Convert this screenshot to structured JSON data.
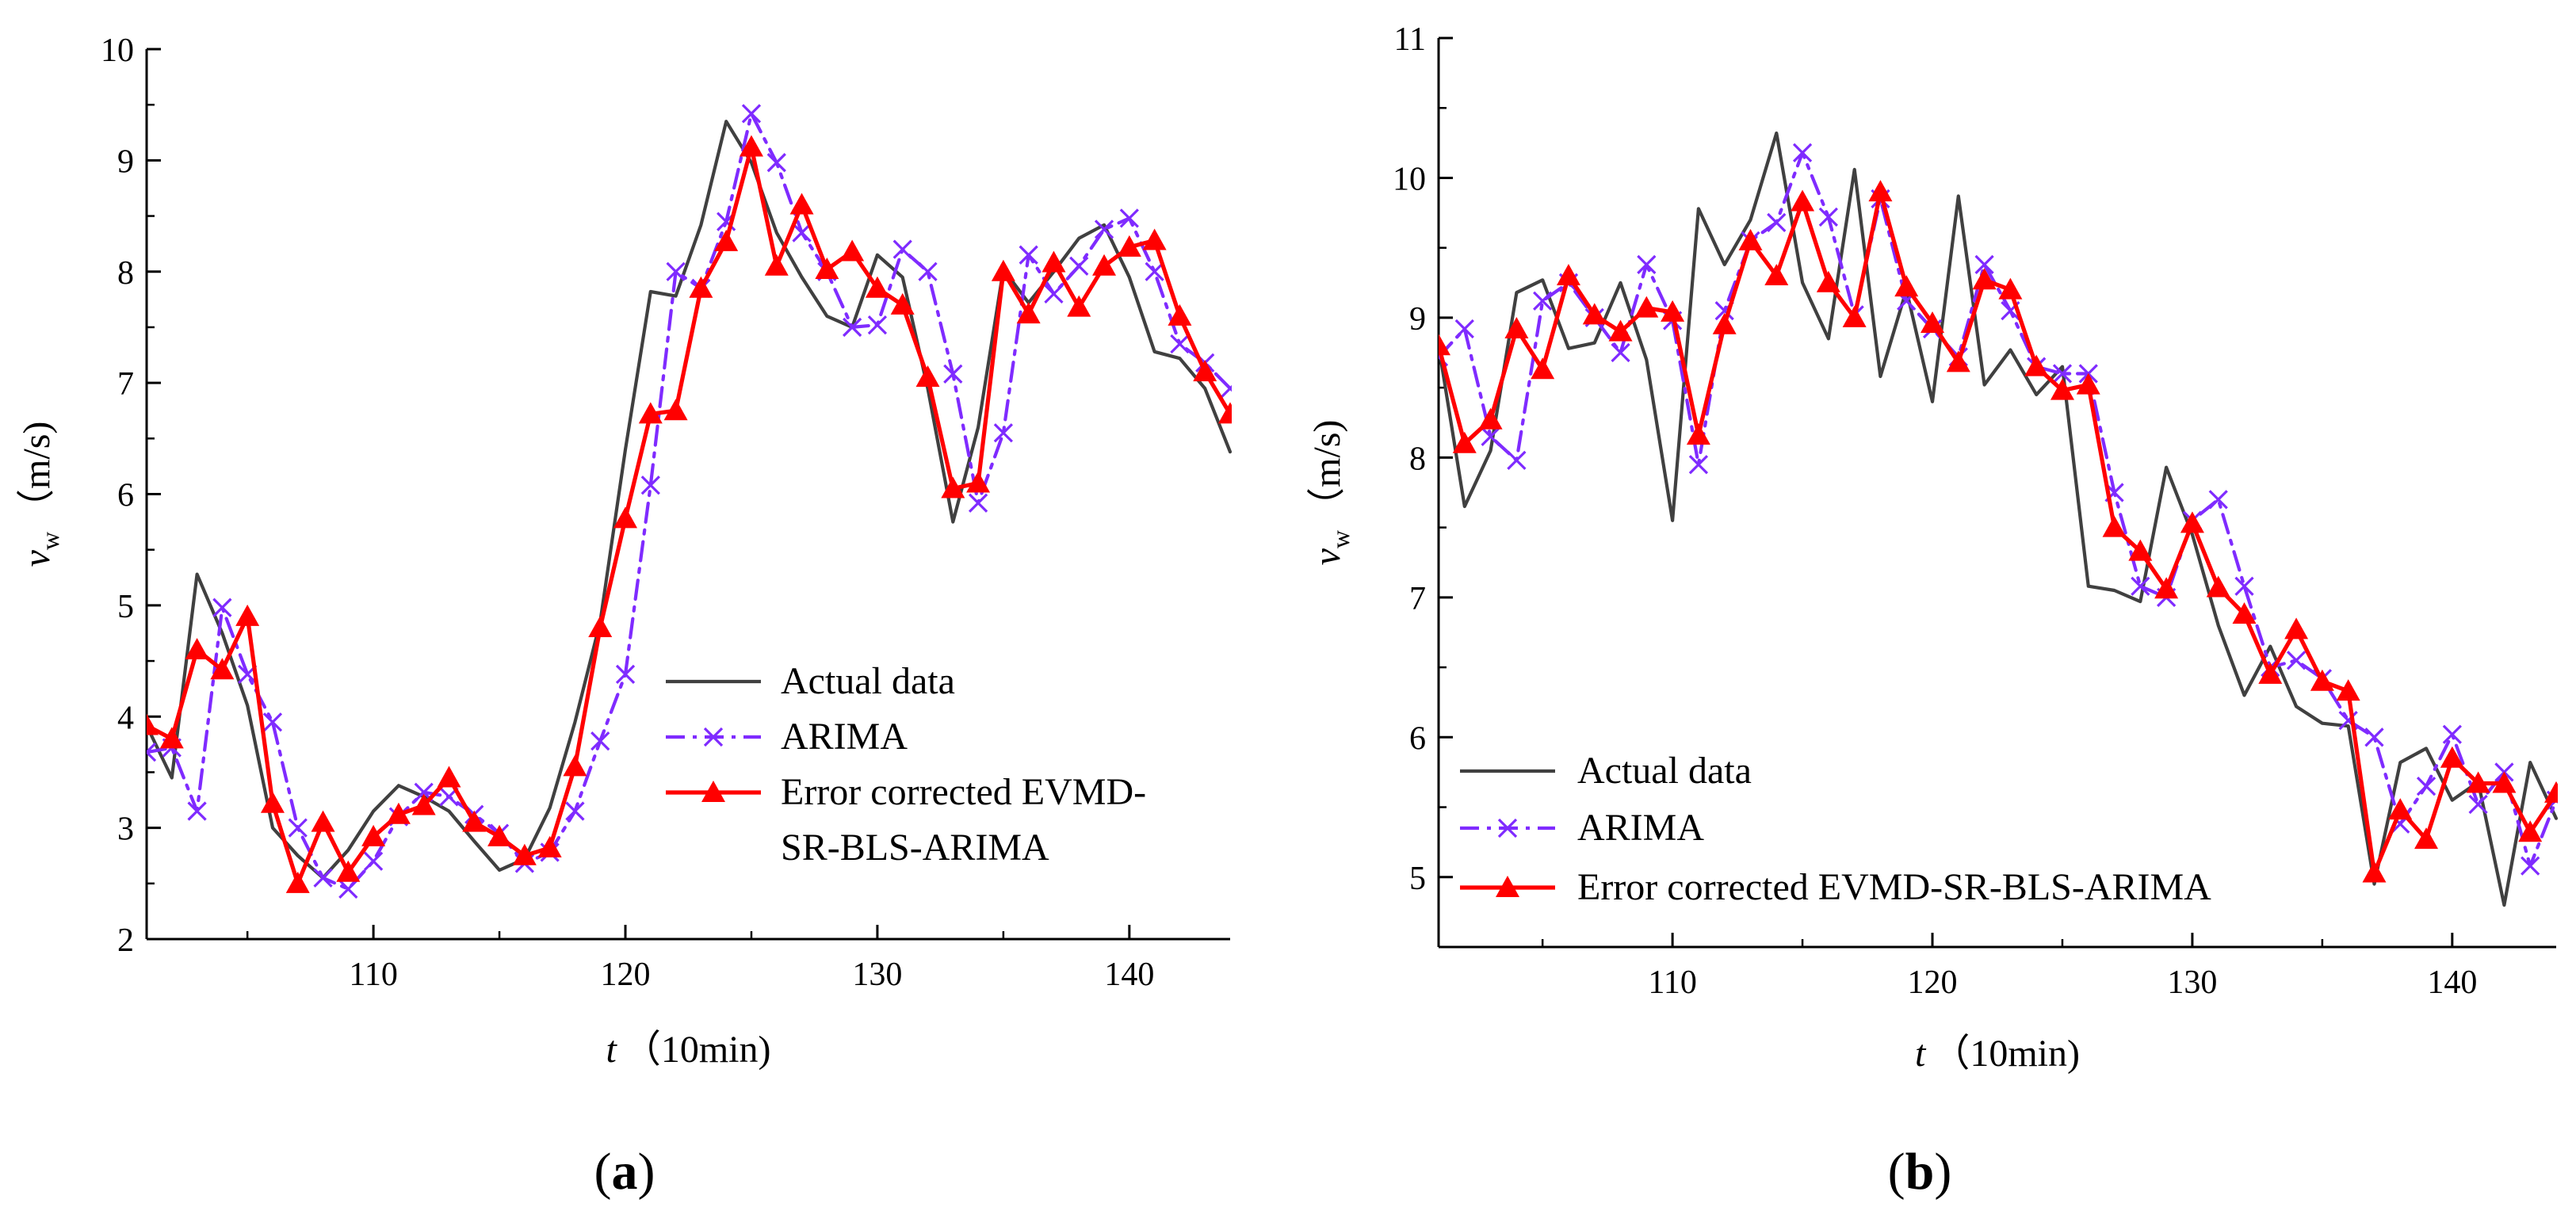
{
  "colors": {
    "actual": "#404040",
    "arima": "#7f2bff",
    "corrected": "#ff0000",
    "axis": "#000000"
  },
  "chart_data": [
    {
      "type": "line",
      "panel_label": "(a)",
      "panel_label_parts": [
        "(",
        "a",
        ")"
      ],
      "xlabel_var": "t",
      "xlabel_unit": "（10min)",
      "ylabel_var": "v",
      "ylabel_sub": "w",
      "ylabel_unit": "（m/s)",
      "xlim": [
        101,
        144
      ],
      "ylim": [
        2,
        10
      ],
      "xticks": [
        110,
        120,
        130,
        140
      ],
      "xtick_labels": [
        "110",
        "120",
        "130",
        "140"
      ],
      "yticks": [
        2,
        3,
        4,
        5,
        6,
        7,
        8,
        9,
        10
      ],
      "ytick_labels": [
        "2",
        "3",
        "4",
        "5",
        "6",
        "7",
        "8",
        "9",
        "10"
      ],
      "x": [
        101,
        102,
        103,
        104,
        105,
        106,
        107,
        108,
        109,
        110,
        111,
        112,
        113,
        114,
        115,
        116,
        117,
        118,
        119,
        120,
        121,
        122,
        123,
        124,
        125,
        126,
        127,
        128,
        129,
        130,
        131,
        132,
        133,
        134,
        135,
        136,
        137,
        138,
        139,
        140,
        141,
        142,
        143,
        144
      ],
      "legend": {
        "position": "center-right",
        "labels": [
          "Actual data",
          "ARIMA",
          "Error corrected EVMD-",
          "SR-BLS-ARIMA"
        ]
      },
      "series": [
        {
          "name": "Actual data",
          "key": "actual",
          "values": [
            3.92,
            3.45,
            5.28,
            4.75,
            4.1,
            3.0,
            2.75,
            2.55,
            2.8,
            3.15,
            3.38,
            3.28,
            3.15,
            2.88,
            2.62,
            2.72,
            3.18,
            3.95,
            4.85,
            6.4,
            7.82,
            7.78,
            8.42,
            9.35,
            8.98,
            8.35,
            7.95,
            7.6,
            7.5,
            8.15,
            7.95,
            6.95,
            5.75,
            6.6,
            8.02,
            7.72,
            8.0,
            8.3,
            8.42,
            7.95,
            7.28,
            7.22,
            6.95,
            6.38
          ]
        },
        {
          "name": "ARIMA",
          "key": "arima",
          "values": [
            3.68,
            3.72,
            3.15,
            4.98,
            4.38,
            3.95,
            3.0,
            2.55,
            2.45,
            2.7,
            3.1,
            3.32,
            3.28,
            3.12,
            2.95,
            2.68,
            2.78,
            3.15,
            3.78,
            4.38,
            6.08,
            8.0,
            7.85,
            8.45,
            9.42,
            8.98,
            8.35,
            8.0,
            7.5,
            7.52,
            8.2,
            8.0,
            7.08,
            5.92,
            6.55,
            8.15,
            7.8,
            8.05,
            8.38,
            8.48,
            8.0,
            7.35,
            7.18,
            6.95
          ]
        },
        {
          "name": "Error corrected EVMD-SR-BLS-ARIMA",
          "key": "corrected",
          "values": [
            3.92,
            3.8,
            4.6,
            4.42,
            4.9,
            3.22,
            2.5,
            3.05,
            2.6,
            2.92,
            3.12,
            3.2,
            3.45,
            3.05,
            2.92,
            2.75,
            2.82,
            3.55,
            4.8,
            5.78,
            6.72,
            6.75,
            7.85,
            8.27,
            9.12,
            8.05,
            8.6,
            8.02,
            8.18,
            7.85,
            7.7,
            7.05,
            6.05,
            6.1,
            8.0,
            7.62,
            8.08,
            7.68,
            8.05,
            8.22,
            8.28,
            7.6,
            7.1,
            6.72
          ]
        }
      ]
    },
    {
      "type": "line",
      "panel_label": "(b)",
      "panel_label_parts": [
        "(",
        "b",
        ")"
      ],
      "xlabel_var": "t",
      "xlabel_unit": "（10min)",
      "ylabel_var": "v",
      "ylabel_sub": "w",
      "ylabel_unit": "（m/s)",
      "xlim": [
        101,
        144
      ],
      "ylim": [
        4.5,
        11
      ],
      "xticks": [
        110,
        120,
        130,
        140
      ],
      "xtick_labels": [
        "110",
        "120",
        "130",
        "140"
      ],
      "yticks": [
        5,
        6,
        7,
        8,
        9,
        10,
        11
      ],
      "ytick_labels": [
        "5",
        "6",
        "7",
        "8",
        "9",
        "10",
        "11"
      ],
      "x": [
        101,
        102,
        103,
        104,
        105,
        106,
        107,
        108,
        109,
        110,
        111,
        112,
        113,
        114,
        115,
        116,
        117,
        118,
        119,
        120,
        121,
        122,
        123,
        124,
        125,
        126,
        127,
        128,
        129,
        130,
        131,
        132,
        133,
        134,
        135,
        136,
        137,
        138,
        139,
        140,
        141,
        142,
        143,
        144
      ],
      "legend": {
        "position": "bottom-left",
        "labels": [
          "Actual data",
          "ARIMA",
          "Error corrected EVMD-SR-BLS-ARIMA"
        ]
      },
      "series": [
        {
          "name": "Actual data",
          "key": "actual",
          "values": [
            8.8,
            7.65,
            8.05,
            9.18,
            9.27,
            8.78,
            8.82,
            9.25,
            8.7,
            7.55,
            9.78,
            9.38,
            9.7,
            10.32,
            9.25,
            8.85,
            10.06,
            8.58,
            9.2,
            8.4,
            9.87,
            8.52,
            8.77,
            8.45,
            8.65,
            7.08,
            7.05,
            6.97,
            7.93,
            7.45,
            6.8,
            6.3,
            6.65,
            6.22,
            6.1,
            6.08,
            4.95,
            5.82,
            5.92,
            5.55,
            5.68,
            4.8,
            5.82,
            5.42
          ]
        },
        {
          "name": "ARIMA",
          "key": "arima",
          "values": [
            8.72,
            8.92,
            8.15,
            7.98,
            9.12,
            9.25,
            9.0,
            8.75,
            9.38,
            8.98,
            7.95,
            9.05,
            9.55,
            9.68,
            10.18,
            9.72,
            9.02,
            9.85,
            9.12,
            8.92,
            8.72,
            9.38,
            9.05,
            8.65,
            8.6,
            8.6,
            7.75,
            7.08,
            7.0,
            7.55,
            7.7,
            7.08,
            6.5,
            6.55,
            6.42,
            6.12,
            6.0,
            5.38,
            5.65,
            6.02,
            5.52,
            5.75,
            5.08,
            5.55
          ]
        },
        {
          "name": "Error corrected EVMD-SR-BLS-ARIMA",
          "key": "corrected",
          "values": [
            8.8,
            8.1,
            8.27,
            8.92,
            8.63,
            9.3,
            9.02,
            8.9,
            9.07,
            9.04,
            8.16,
            8.95,
            9.55,
            9.3,
            9.83,
            9.25,
            9.0,
            9.9,
            9.22,
            8.96,
            8.68,
            9.27,
            9.2,
            8.65,
            8.48,
            8.52,
            7.5,
            7.33,
            7.06,
            7.53,
            7.07,
            6.88,
            6.45,
            6.77,
            6.4,
            6.33,
            5.03,
            5.48,
            5.27,
            5.85,
            5.67,
            5.67,
            5.32,
            5.6
          ]
        }
      ]
    }
  ]
}
